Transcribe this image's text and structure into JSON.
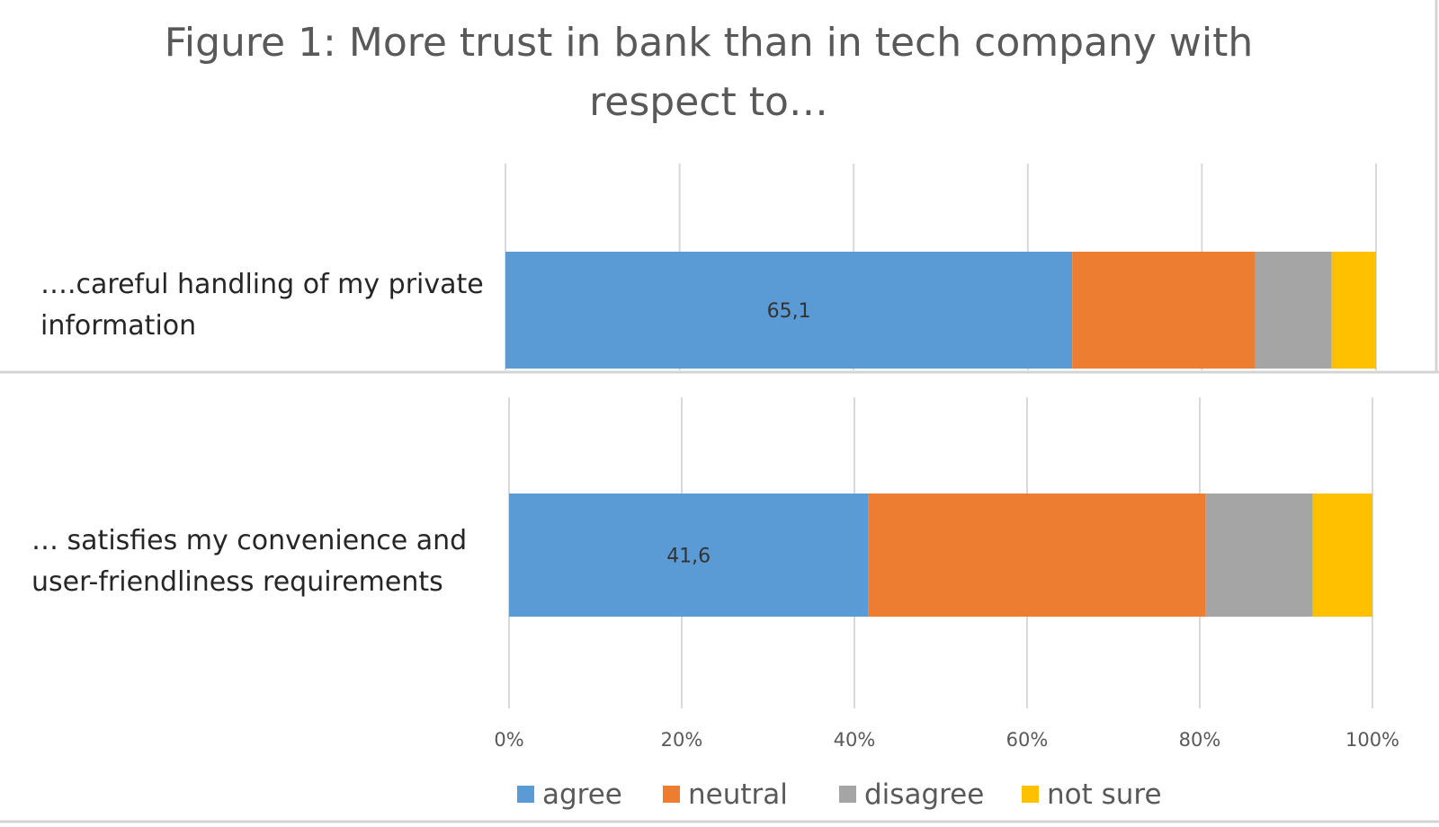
{
  "chart_data": {
    "type": "bar",
    "orientation": "horizontal",
    "stacked": "percent",
    "title": "Figure 1: More trust in bank than in tech company with respect to…",
    "categories": [
      "….careful handling of my private information",
      "… satisfies my convenience and user-friendliness requirements"
    ],
    "series": [
      {
        "name": "agree",
        "color": "#5b9bd5",
        "values": [
          65.1,
          41.6
        ],
        "data_labels": [
          "65,1",
          "41,6"
        ]
      },
      {
        "name": "neutral",
        "color": "#ed7d31",
        "values": [
          21.0,
          39.1
        ]
      },
      {
        "name": "disagree",
        "color": "#a5a5a5",
        "values": [
          8.8,
          12.4
        ]
      },
      {
        "name": "not sure",
        "color": "#ffc000",
        "values": [
          5.1,
          6.9
        ]
      }
    ],
    "xlim": [
      0,
      100
    ],
    "x_ticks": [
      "0%",
      "20%",
      "40%",
      "60%",
      "80%",
      "100%"
    ],
    "grid": true,
    "legend_position": "bottom"
  }
}
